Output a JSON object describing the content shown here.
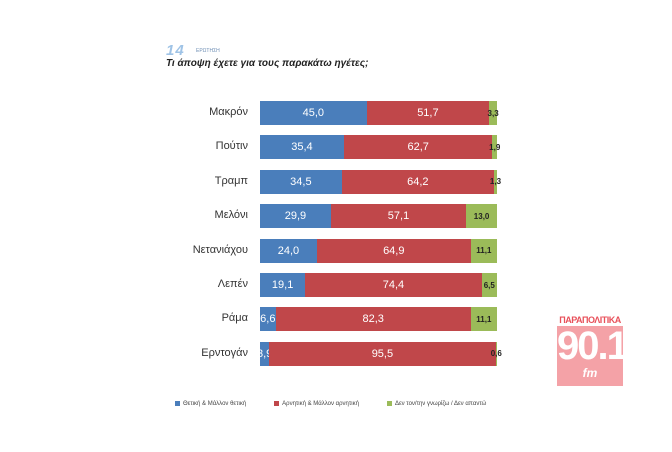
{
  "header": {
    "question_number": "14",
    "question_word": "ΕΡΩΤΗΣΗ",
    "title": "Τι άποψη έχετε για τους παρακάτω ηγέτες;"
  },
  "logo": {
    "top": "ΠΑΡΑΠΟΛΙΤΙΚΑ",
    "main": "90.1",
    "sub": "fm"
  },
  "chart_data": {
    "type": "bar",
    "stacked": true,
    "orientation": "horizontal",
    "title": "Τι άποψη έχετε για τους παρακάτω ηγέτες;",
    "categories": [
      "Μακρόν",
      "Πούτιν",
      "Τραμπ",
      "Μελόνι",
      "Νετανιάχου",
      "Λεπέν",
      "Ράμα",
      "Ερντογάν"
    ],
    "series": [
      {
        "name": "Θετική & Μάλλον θετική",
        "color": "#4a7ebb",
        "values": [
          "45,0",
          "35,4",
          "34,5",
          "29,9",
          "24,0",
          "19,1",
          "6,6",
          "3,9"
        ]
      },
      {
        "name": "Αρνητική & Μάλλον αρνητική",
        "color": "#c0474a",
        "values": [
          "51,7",
          "62,7",
          "64,2",
          "57,1",
          "64,9",
          "74,4",
          "82,3",
          "95,5"
        ]
      },
      {
        "name": "Δεν τον/την γνωρίζω / Δεν απαντώ",
        "color": "#9bbb59",
        "values": [
          "3,3",
          "1,9",
          "1,3",
          "13,0",
          "11,1",
          "6,5",
          "11,1",
          "0,6"
        ]
      }
    ],
    "legend": "bottom",
    "xlim": [
      0,
      100
    ]
  }
}
